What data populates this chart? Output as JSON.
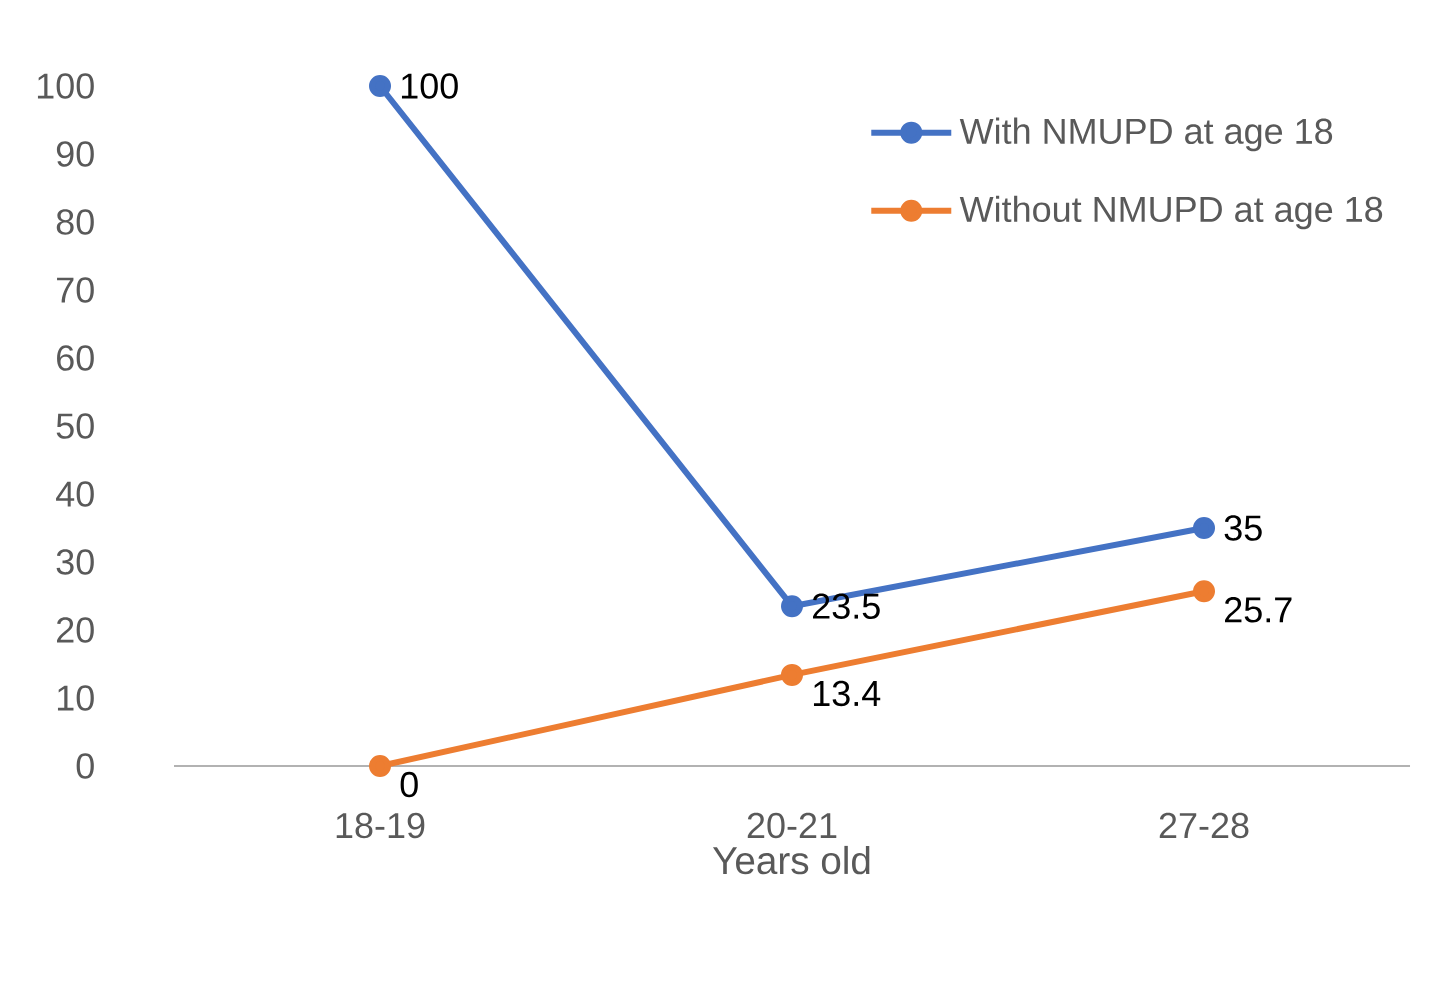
{
  "chart_data": {
    "type": "line",
    "categories": [
      "18-19",
      "20-21",
      "27-28"
    ],
    "xlabel": "Years old",
    "series": [
      {
        "name": "With NMUPD at age 18",
        "color": "#4472c4",
        "values": [
          100,
          23.5,
          35
        ]
      },
      {
        "name": "Without NMUPD at age 18",
        "color": "#ed7d31",
        "values": [
          0,
          13.4,
          25.7
        ]
      }
    ],
    "ylim": [
      0,
      100
    ],
    "yticks": [
      0,
      10,
      20,
      30,
      40,
      50,
      60,
      70,
      80,
      90,
      100
    ],
    "data_labels": true,
    "legend": "top right",
    "marker": "circle",
    "line_style": "solid"
  }
}
